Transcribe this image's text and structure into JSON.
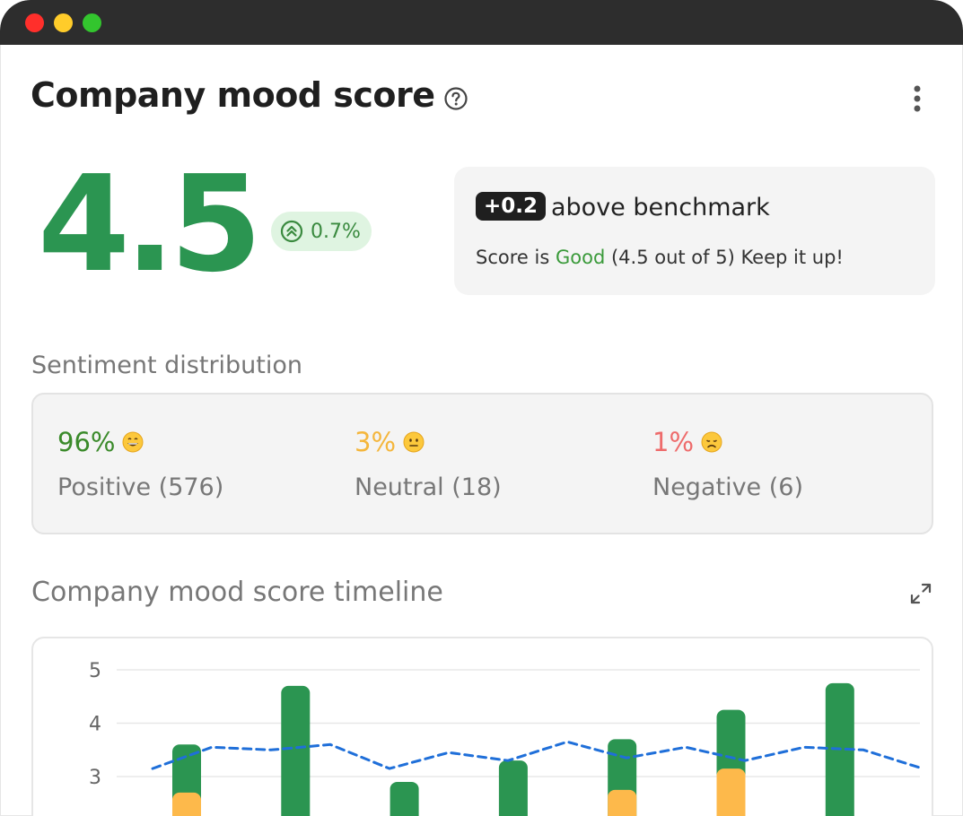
{
  "window": {
    "controls": [
      "close",
      "minimize",
      "maximize"
    ]
  },
  "header": {
    "title": "Company mood score",
    "help_icon": "question-circle-icon",
    "more_icon": "kebab-menu-icon"
  },
  "score": {
    "value": "4.5",
    "change": "0.7%",
    "change_icon": "double-chevron-up-icon"
  },
  "benchmark": {
    "delta": "+0.2",
    "label": "above benchmark",
    "prefix": "Score is",
    "rating": "Good",
    "suffix": "(4.5 out of 5) Keep it up!"
  },
  "sentiment": {
    "title": "Sentiment distribution",
    "items": [
      {
        "pct": "96%",
        "label": "Positive (576)",
        "emoji": "grinning-face-icon",
        "color": "#3a8a2a"
      },
      {
        "pct": "3%",
        "label": "Neutral (18)",
        "emoji": "neutral-face-icon",
        "color": "#f4b63c"
      },
      {
        "pct": "1%",
        "label": "Negative (6)",
        "emoji": "disappointed-face-icon",
        "color": "#ee6b6b"
      }
    ]
  },
  "timeline": {
    "title": "Company mood score timeline",
    "expand_icon": "expand-arrows-icon"
  },
  "chart_data": {
    "type": "bar",
    "y_ticks": [
      "5",
      "4",
      "3"
    ],
    "ylim": [
      2.3,
      5
    ],
    "grid": true,
    "bars": [
      {
        "total": 3.6,
        "neutral": 2.7
      },
      {
        "total": 4.7,
        "neutral": 0
      },
      {
        "total": 2.9,
        "neutral": 0
      },
      {
        "total": 3.3,
        "neutral": 0
      },
      {
        "total": 3.7,
        "neutral": 2.75
      },
      {
        "total": 4.25,
        "neutral": 3.15
      },
      {
        "total": 4.75,
        "neutral": 0
      }
    ],
    "line": [
      3.15,
      3.55,
      3.5,
      3.6,
      3.15,
      3.45,
      3.3,
      3.65,
      3.35,
      3.55,
      3.3,
      3.55,
      3.5,
      3.15
    ],
    "colors": {
      "positive": "#2b9551",
      "neutral": "#fdb94b",
      "line": "#1f6fd9"
    }
  }
}
